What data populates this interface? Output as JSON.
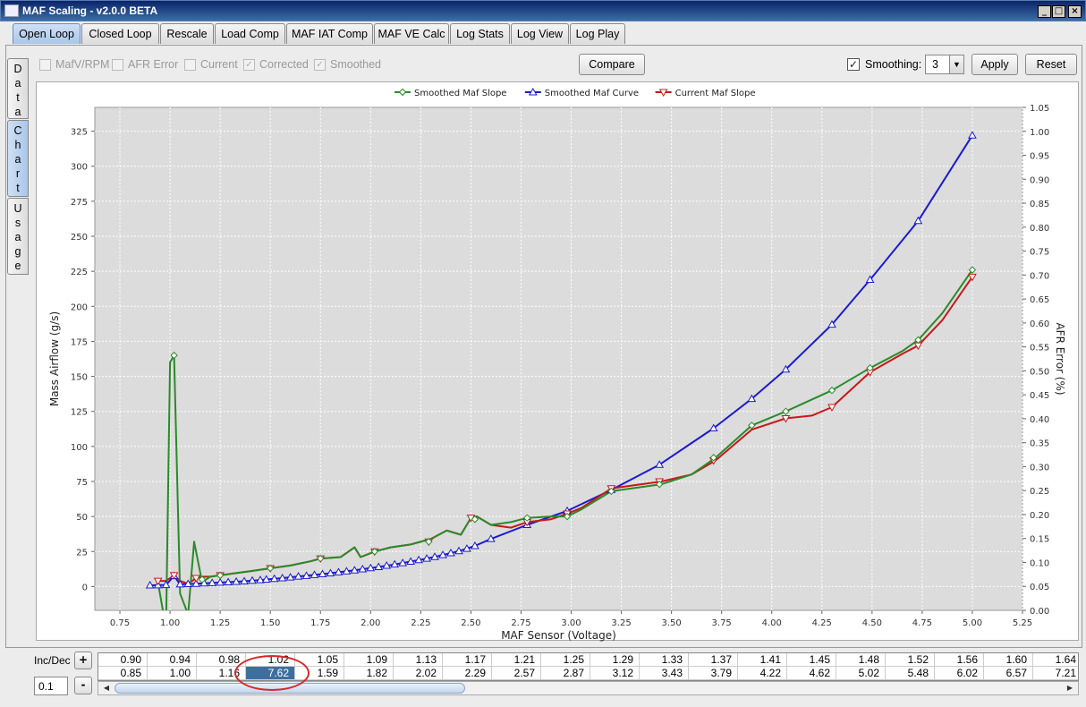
{
  "window": {
    "title": "MAF Scaling - v2.0.0 BETA",
    "buttons": [
      "_",
      "□",
      "×"
    ]
  },
  "tabs": [
    {
      "label": "Open Loop",
      "active": true
    },
    {
      "label": "Closed Loop",
      "active": false
    },
    {
      "label": "Rescale",
      "active": false
    },
    {
      "label": "Load Comp",
      "active": false
    },
    {
      "label": "MAF IAT Comp",
      "active": false
    },
    {
      "label": "MAF VE Calc",
      "active": false
    },
    {
      "label": "Log Stats",
      "active": false
    },
    {
      "label": "Log View",
      "active": false
    },
    {
      "label": "Log Play",
      "active": false
    }
  ],
  "side_tabs": [
    {
      "label": "Data",
      "active": false
    },
    {
      "label": "Chart",
      "active": true
    },
    {
      "label": "Usage",
      "active": false
    }
  ],
  "toolbar": {
    "checkboxes": [
      {
        "label": "MafV/RPM",
        "checked": false
      },
      {
        "label": "AFR Error",
        "checked": false
      },
      {
        "label": "Current",
        "checked": false
      },
      {
        "label": "Corrected",
        "checked": true
      },
      {
        "label": "Smoothed",
        "checked": true
      }
    ],
    "compare_label": "Compare",
    "smoothing_label": "Smoothing:",
    "smoothing_checked": true,
    "smoothing_value": "3",
    "apply_label": "Apply",
    "reset_label": "Reset"
  },
  "chart_data": {
    "type": "line",
    "xlabel": "MAF Sensor (Voltage)",
    "ylabel": "Mass Airflow (g/s)",
    "y2label": "AFR Error (%)",
    "xlim": [
      0.625,
      5.25
    ],
    "ylim": [
      -17,
      342
    ],
    "y2lim": [
      0.0,
      1.05
    ],
    "x_ticks": [
      "0.75",
      "1.00",
      "1.25",
      "1.50",
      "1.75",
      "2.00",
      "2.25",
      "2.50",
      "2.75",
      "3.00",
      "3.25",
      "3.50",
      "3.75",
      "4.00",
      "4.25",
      "4.50",
      "4.75",
      "5.00",
      "5.25"
    ],
    "y_ticks": [
      "0",
      "25",
      "50",
      "75",
      "100",
      "125",
      "150",
      "175",
      "200",
      "225",
      "250",
      "275",
      "300",
      "325"
    ],
    "y2_ticks": [
      "0.00",
      "0.05",
      "0.10",
      "0.15",
      "0.20",
      "0.25",
      "0.30",
      "0.35",
      "0.40",
      "0.45",
      "0.50",
      "0.55",
      "0.60",
      "0.65",
      "0.70",
      "0.75",
      "0.80",
      "0.85",
      "0.90",
      "0.95",
      "1.00",
      "1.05"
    ],
    "grid": true,
    "legend_position": "top-center",
    "series": [
      {
        "name": "Smoothed Maf Slope",
        "color": "#2a8a2a",
        "marker": "diamond",
        "x": [
          0.94,
          0.98,
          1.0,
          1.02,
          1.05,
          1.09,
          1.12,
          1.16,
          1.2,
          1.25,
          1.3,
          1.4,
          1.5,
          1.6,
          1.7,
          1.75,
          1.85,
          1.92,
          1.95,
          2.02,
          2.1,
          2.2,
          2.3,
          2.38,
          2.45,
          2.5,
          2.53,
          2.6,
          2.7,
          2.78,
          2.9,
          2.98,
          3.05,
          3.2,
          3.45,
          3.6,
          3.72,
          3.9,
          4.07,
          4.3,
          4.49,
          4.65,
          4.73,
          4.85,
          5.0
        ],
        "y": [
          3,
          -30,
          160,
          165,
          -5,
          -20,
          32,
          3,
          7,
          8,
          9,
          11,
          13,
          15,
          18,
          20,
          21,
          28,
          21,
          25,
          28,
          30,
          34,
          40,
          37,
          49,
          50,
          44,
          46,
          49,
          50,
          50,
          55,
          68,
          73,
          80,
          92,
          115,
          125,
          140,
          156,
          168,
          176,
          195,
          226
        ],
        "marker_x": [
          1.02,
          1.16,
          1.25,
          1.5,
          1.75,
          2.02,
          2.29,
          2.52,
          2.78,
          2.98,
          3.2,
          3.44,
          3.71,
          3.9,
          4.07,
          4.3,
          4.49,
          4.73,
          5.0
        ],
        "marker_y": [
          165,
          5,
          8,
          13,
          20,
          25,
          32,
          48,
          49,
          50,
          68,
          73,
          92,
          115,
          125,
          140,
          156,
          176,
          226
        ]
      },
      {
        "name": "Smoothed Maf Curve",
        "color": "#1a1ad4",
        "marker": "triangle-up",
        "x": [
          0.9,
          0.94,
          0.98,
          1.02,
          1.05,
          1.09,
          1.13,
          1.17,
          1.21,
          1.25,
          1.29,
          1.33,
          1.37,
          1.41,
          1.45,
          1.48,
          1.52,
          1.56,
          1.6,
          1.64,
          1.68,
          1.72,
          1.76,
          1.8,
          1.84,
          1.88,
          1.92,
          1.96,
          2.0,
          2.04,
          2.08,
          2.12,
          2.16,
          2.2,
          2.24,
          2.28,
          2.32,
          2.36,
          2.4,
          2.44,
          2.48,
          2.52,
          2.6,
          2.78,
          2.98,
          3.2,
          3.44,
          3.71,
          3.9,
          4.07,
          4.3,
          4.49,
          4.73,
          5.0
        ],
        "y": [
          0.85,
          1.0,
          1.16,
          7.62,
          1.59,
          1.82,
          2.02,
          2.29,
          2.57,
          2.87,
          3.12,
          3.43,
          3.79,
          4.22,
          4.62,
          5.02,
          5.48,
          6.02,
          6.57,
          7.21,
          7.7,
          8.3,
          8.9,
          9.5,
          10.2,
          10.9,
          11.6,
          12.4,
          13.2,
          14.0,
          14.9,
          15.8,
          16.8,
          17.8,
          18.9,
          20.0,
          21.2,
          22.5,
          23.9,
          25.3,
          27.0,
          29.0,
          34.0,
          44.0,
          54.0,
          69.0,
          87.0,
          113.0,
          134.0,
          155.0,
          187.0,
          219.0,
          261.0,
          322.0
        ]
      },
      {
        "name": "Current Maf Slope",
        "color": "#c81818",
        "marker": "triangle-down",
        "x": [
          0.94,
          0.98,
          1.02,
          1.05,
          1.09,
          1.13,
          1.16,
          1.2,
          1.25,
          1.3,
          1.4,
          1.5,
          1.6,
          1.7,
          1.75,
          1.85,
          1.92,
          1.95,
          2.02,
          2.1,
          2.2,
          2.3,
          2.38,
          2.45,
          2.5,
          2.53,
          2.6,
          2.7,
          2.78,
          2.9,
          2.98,
          3.05,
          3.2,
          3.45,
          3.6,
          3.72,
          3.9,
          4.07,
          4.2,
          4.3,
          4.49,
          4.65,
          4.73,
          4.85,
          5.0
        ],
        "y": [
          4,
          4,
          8,
          4,
          2,
          6,
          7,
          7,
          8,
          9,
          11,
          13,
          15,
          18,
          20,
          21,
          28,
          21,
          25,
          28,
          30,
          34,
          40,
          37,
          49,
          50,
          44,
          42,
          46,
          48,
          52,
          56,
          70,
          75,
          80,
          90,
          112,
          120,
          122,
          128,
          153,
          166,
          172,
          190,
          221
        ],
        "marker_x": [
          0.94,
          1.02,
          1.13,
          1.25,
          1.5,
          1.75,
          2.02,
          2.29,
          2.5,
          2.78,
          2.98,
          3.2,
          3.44,
          3.71,
          4.07,
          4.3,
          4.49,
          4.73,
          5.0
        ],
        "marker_y": [
          4,
          8,
          6,
          8,
          13,
          20,
          25,
          32,
          49,
          46,
          52,
          70,
          75,
          90,
          120,
          128,
          153,
          172,
          221
        ]
      }
    ]
  },
  "bottom": {
    "incdec_label": "Inc/Dec",
    "plus_label": "+",
    "minus_label": "-",
    "step_value": "0.1",
    "row1": [
      "0.90",
      "0.94",
      "0.98",
      "1.02",
      "1.05",
      "1.09",
      "1.13",
      "1.17",
      "1.21",
      "1.25",
      "1.29",
      "1.33",
      "1.37",
      "1.41",
      "1.45",
      "1.48",
      "1.52",
      "1.56",
      "1.60",
      "1.64"
    ],
    "row2": [
      "0.85",
      "1.00",
      "1.16",
      "7.62",
      "1.59",
      "1.82",
      "2.02",
      "2.29",
      "2.57",
      "2.87",
      "3.12",
      "3.43",
      "3.79",
      "4.22",
      "4.62",
      "5.02",
      "5.48",
      "6.02",
      "6.57",
      "7.21"
    ],
    "selected_index": 3
  }
}
